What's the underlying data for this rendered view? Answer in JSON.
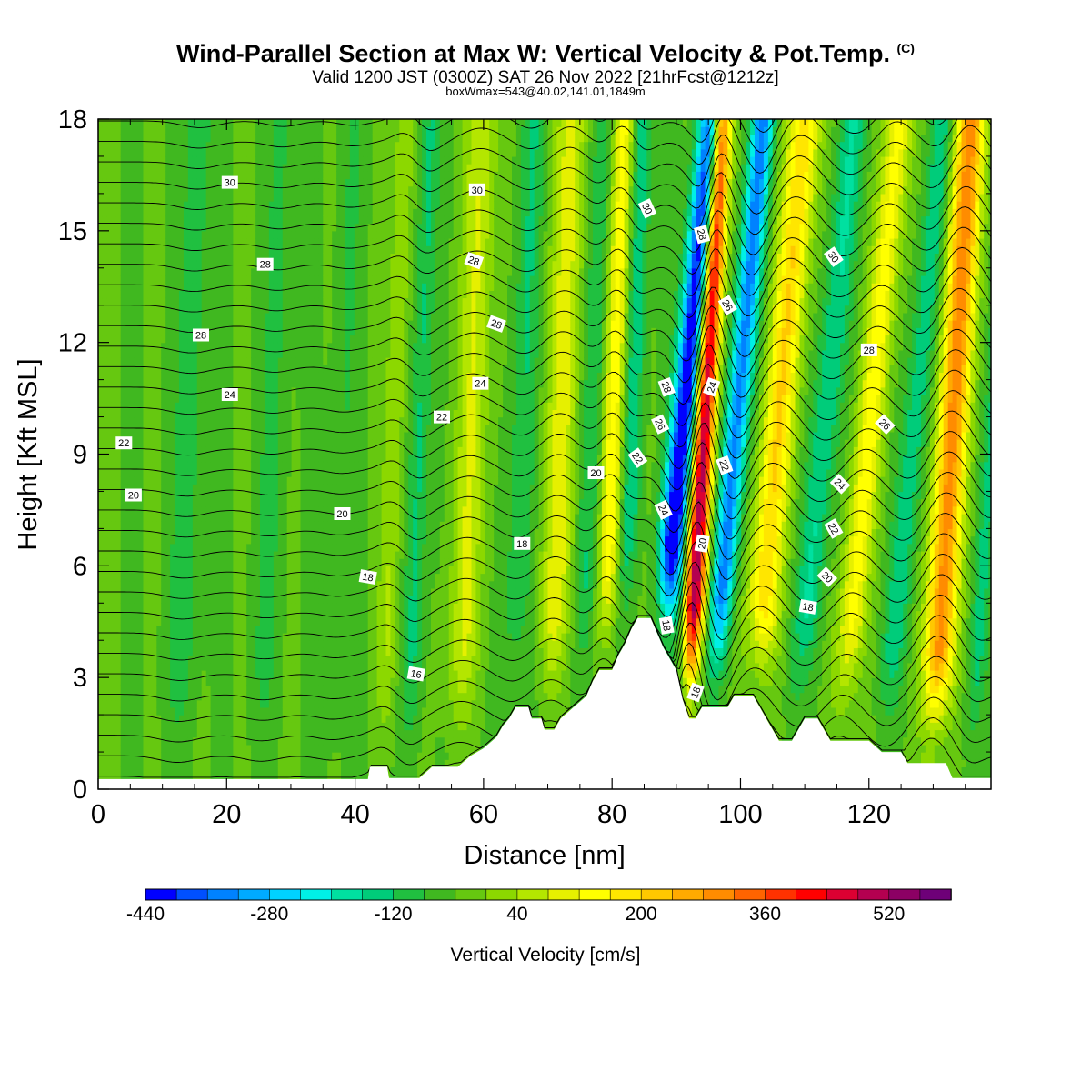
{
  "header": {
    "title": "Wind-Parallel Section at Max W: Vertical Velocity & Pot.Temp.",
    "copyright": "(C)",
    "valid_line": "Valid 1200 JST (0300Z) SAT 26 Nov 2022 [21hrFcst@1212z]",
    "box_line": "boxWmax=543@40.02,141.01,1849m"
  },
  "chart_data": {
    "type": "heatmap",
    "xlabel": "Distance [nm]",
    "ylabel": "Height [Kft MSL]",
    "xlim": [
      0,
      139
    ],
    "ylim": [
      0,
      18
    ],
    "x_ticks": [
      0,
      20,
      40,
      60,
      80,
      100,
      120
    ],
    "y_ticks": [
      0,
      3,
      6,
      9,
      12,
      15,
      18
    ],
    "colorbar": {
      "label": "Vertical Velocity [cm/s]",
      "min": -440,
      "step": 40,
      "tick_labels": [
        "-440",
        "-280",
        "-120",
        "40",
        "200",
        "360",
        "520"
      ],
      "colors": [
        "#0000ff",
        "#0050ff",
        "#0082ff",
        "#00aaff",
        "#00d2ff",
        "#00f0e6",
        "#00e0a0",
        "#00cc7a",
        "#20c040",
        "#40b820",
        "#66c810",
        "#8cd800",
        "#b4e600",
        "#e6f000",
        "#ffff00",
        "#ffe600",
        "#ffc800",
        "#ffaa00",
        "#ff8c00",
        "#ff6400",
        "#ff3200",
        "#ff0000",
        "#dc0032",
        "#b40050",
        "#8c0064",
        "#6e0078"
      ]
    },
    "terrain_kft": [
      [
        0,
        0.27
      ],
      [
        42,
        0.27
      ],
      [
        42.3,
        0.6
      ],
      [
        45,
        0.6
      ],
      [
        45.3,
        0.3
      ],
      [
        50,
        0.3
      ],
      [
        52,
        0.6
      ],
      [
        56,
        0.6
      ],
      [
        58,
        0.9
      ],
      [
        60,
        1.1
      ],
      [
        62,
        1.4
      ],
      [
        63,
        1.7
      ],
      [
        64,
        1.9
      ],
      [
        65,
        2.2
      ],
      [
        67,
        2.2
      ],
      [
        67.5,
        1.9
      ],
      [
        69,
        1.9
      ],
      [
        69.5,
        1.6
      ],
      [
        71,
        1.6
      ],
      [
        72,
        1.9
      ],
      [
        74,
        2.2
      ],
      [
        76,
        2.5
      ],
      [
        77,
        2.9
      ],
      [
        78,
        3.2
      ],
      [
        80,
        3.2
      ],
      [
        81,
        3.6
      ],
      [
        82,
        3.9
      ],
      [
        83,
        4.3
      ],
      [
        84,
        4.6
      ],
      [
        86,
        4.6
      ],
      [
        87,
        4.2
      ],
      [
        88,
        3.8
      ],
      [
        89,
        3.5
      ],
      [
        90,
        3.2
      ],
      [
        91,
        2.4
      ],
      [
        92,
        1.9
      ],
      [
        93,
        1.9
      ],
      [
        94,
        2.2
      ],
      [
        98,
        2.2
      ],
      [
        99,
        2.5
      ],
      [
        102,
        2.5
      ],
      [
        103,
        2.2
      ],
      [
        104,
        1.9
      ],
      [
        105,
        1.6
      ],
      [
        106,
        1.3
      ],
      [
        108,
        1.3
      ],
      [
        109,
        1.6
      ],
      [
        110,
        1.9
      ],
      [
        112,
        1.9
      ],
      [
        113,
        1.6
      ],
      [
        114,
        1.3
      ],
      [
        120,
        1.3
      ],
      [
        122,
        1.0
      ],
      [
        125,
        1.0
      ],
      [
        126,
        0.7
      ],
      [
        132,
        0.7
      ],
      [
        133,
        0.3
      ],
      [
        139,
        0.3
      ]
    ],
    "w_bands": [
      {
        "x": 4,
        "w": 0.6,
        "amp": 0
      },
      {
        "x": 13,
        "w": 2.5,
        "amp": -60
      },
      {
        "x": 26,
        "w": 2.2,
        "amp": -50
      },
      {
        "x": 37,
        "w": 2.0,
        "amp": -40
      },
      {
        "x": 45,
        "w": 1.6,
        "amp": 80
      },
      {
        "x": 49,
        "w": 1.6,
        "amp": -90
      },
      {
        "x": 57,
        "w": 2.5,
        "amp": 120
      },
      {
        "x": 65,
        "w": 2.0,
        "amp": -80
      },
      {
        "x": 71,
        "w": 2.5,
        "amp": 140
      },
      {
        "x": 76,
        "w": 2.0,
        "amp": -90
      },
      {
        "x": 79,
        "w": 1.8,
        "amp": 200
      },
      {
        "x": 82,
        "w": 1.6,
        "amp": -120
      },
      {
        "x": 88,
        "w": 2.0,
        "amp": -440,
        "tilt": 0.55
      },
      {
        "x": 92.5,
        "w": 1.6,
        "amp": 560,
        "tilt": 0.32
      },
      {
        "x": 96.5,
        "w": 1.8,
        "amp": -300,
        "tilt": 0.5
      },
      {
        "x": 103,
        "w": 2.5,
        "amp": 240,
        "tilt": 0.5
      },
      {
        "x": 110,
        "w": 2.2,
        "amp": -120,
        "tilt": 0.55
      },
      {
        "x": 117,
        "w": 2.2,
        "amp": 180,
        "tilt": 0.55
      },
      {
        "x": 124,
        "w": 2.0,
        "amp": -110,
        "tilt": 0.55
      },
      {
        "x": 131,
        "w": 2.4,
        "amp": 340,
        "tilt": 0.35
      },
      {
        "x": 137,
        "w": 1.5,
        "amp": -90,
        "tilt": 0.4
      }
    ],
    "theta_labels": [
      {
        "text": "30",
        "x": 20.5,
        "y": 16.3,
        "rot": 0
      },
      {
        "text": "30",
        "x": 59,
        "y": 16.1,
        "rot": 0
      },
      {
        "text": "30",
        "x": 85.5,
        "y": 15.6,
        "rot": 65
      },
      {
        "text": "30",
        "x": 114.5,
        "y": 14.3,
        "rot": 55
      },
      {
        "text": "28",
        "x": 26,
        "y": 14.1,
        "rot": 0
      },
      {
        "text": "28",
        "x": 58.5,
        "y": 14.2,
        "rot": 20
      },
      {
        "text": "28",
        "x": 94,
        "y": 14.9,
        "rot": 75
      },
      {
        "text": "28",
        "x": 16,
        "y": 12.2,
        "rot": 0
      },
      {
        "text": "28",
        "x": 62,
        "y": 12.5,
        "rot": 20
      },
      {
        "text": "28",
        "x": 88.5,
        "y": 10.8,
        "rot": 70
      },
      {
        "text": "28",
        "x": 120,
        "y": 11.8,
        "rot": 0
      },
      {
        "text": "26",
        "x": 98,
        "y": 13.0,
        "rot": 60
      },
      {
        "text": "26",
        "x": 87.5,
        "y": 9.8,
        "rot": 65
      },
      {
        "text": "26",
        "x": 122.5,
        "y": 9.8,
        "rot": 45
      },
      {
        "text": "24",
        "x": 20.5,
        "y": 10.6,
        "rot": 0
      },
      {
        "text": "24",
        "x": 59.5,
        "y": 10.9,
        "rot": 0
      },
      {
        "text": "24",
        "x": 95.5,
        "y": 10.8,
        "rot": -70
      },
      {
        "text": "24",
        "x": 88,
        "y": 7.5,
        "rot": 65
      },
      {
        "text": "24",
        "x": 115.5,
        "y": 8.2,
        "rot": 45
      },
      {
        "text": "22",
        "x": 4,
        "y": 9.3,
        "rot": 0
      },
      {
        "text": "22",
        "x": 53.5,
        "y": 10.0,
        "rot": 0
      },
      {
        "text": "22",
        "x": 84,
        "y": 8.9,
        "rot": 55
      },
      {
        "text": "22",
        "x": 97.5,
        "y": 8.7,
        "rot": 70
      },
      {
        "text": "22",
        "x": 114.5,
        "y": 7.0,
        "rot": 60
      },
      {
        "text": "20",
        "x": 5.5,
        "y": 7.9,
        "rot": 0
      },
      {
        "text": "20",
        "x": 38,
        "y": 7.4,
        "rot": 0
      },
      {
        "text": "20",
        "x": 77.5,
        "y": 8.5,
        "rot": 0
      },
      {
        "text": "20",
        "x": 94,
        "y": 6.6,
        "rot": -80
      },
      {
        "text": "20",
        "x": 113.5,
        "y": 5.7,
        "rot": 45
      },
      {
        "text": "18",
        "x": 42,
        "y": 5.7,
        "rot": 10
      },
      {
        "text": "18",
        "x": 66,
        "y": 6.6,
        "rot": 0
      },
      {
        "text": "18",
        "x": 88.5,
        "y": 4.4,
        "rot": 80
      },
      {
        "text": "18",
        "x": 110.5,
        "y": 4.9,
        "rot": 10
      },
      {
        "text": "18",
        "x": 93,
        "y": 2.6,
        "rot": -70
      },
      {
        "text": "16",
        "x": 49.5,
        "y": 3.1,
        "rot": 10
      }
    ]
  }
}
